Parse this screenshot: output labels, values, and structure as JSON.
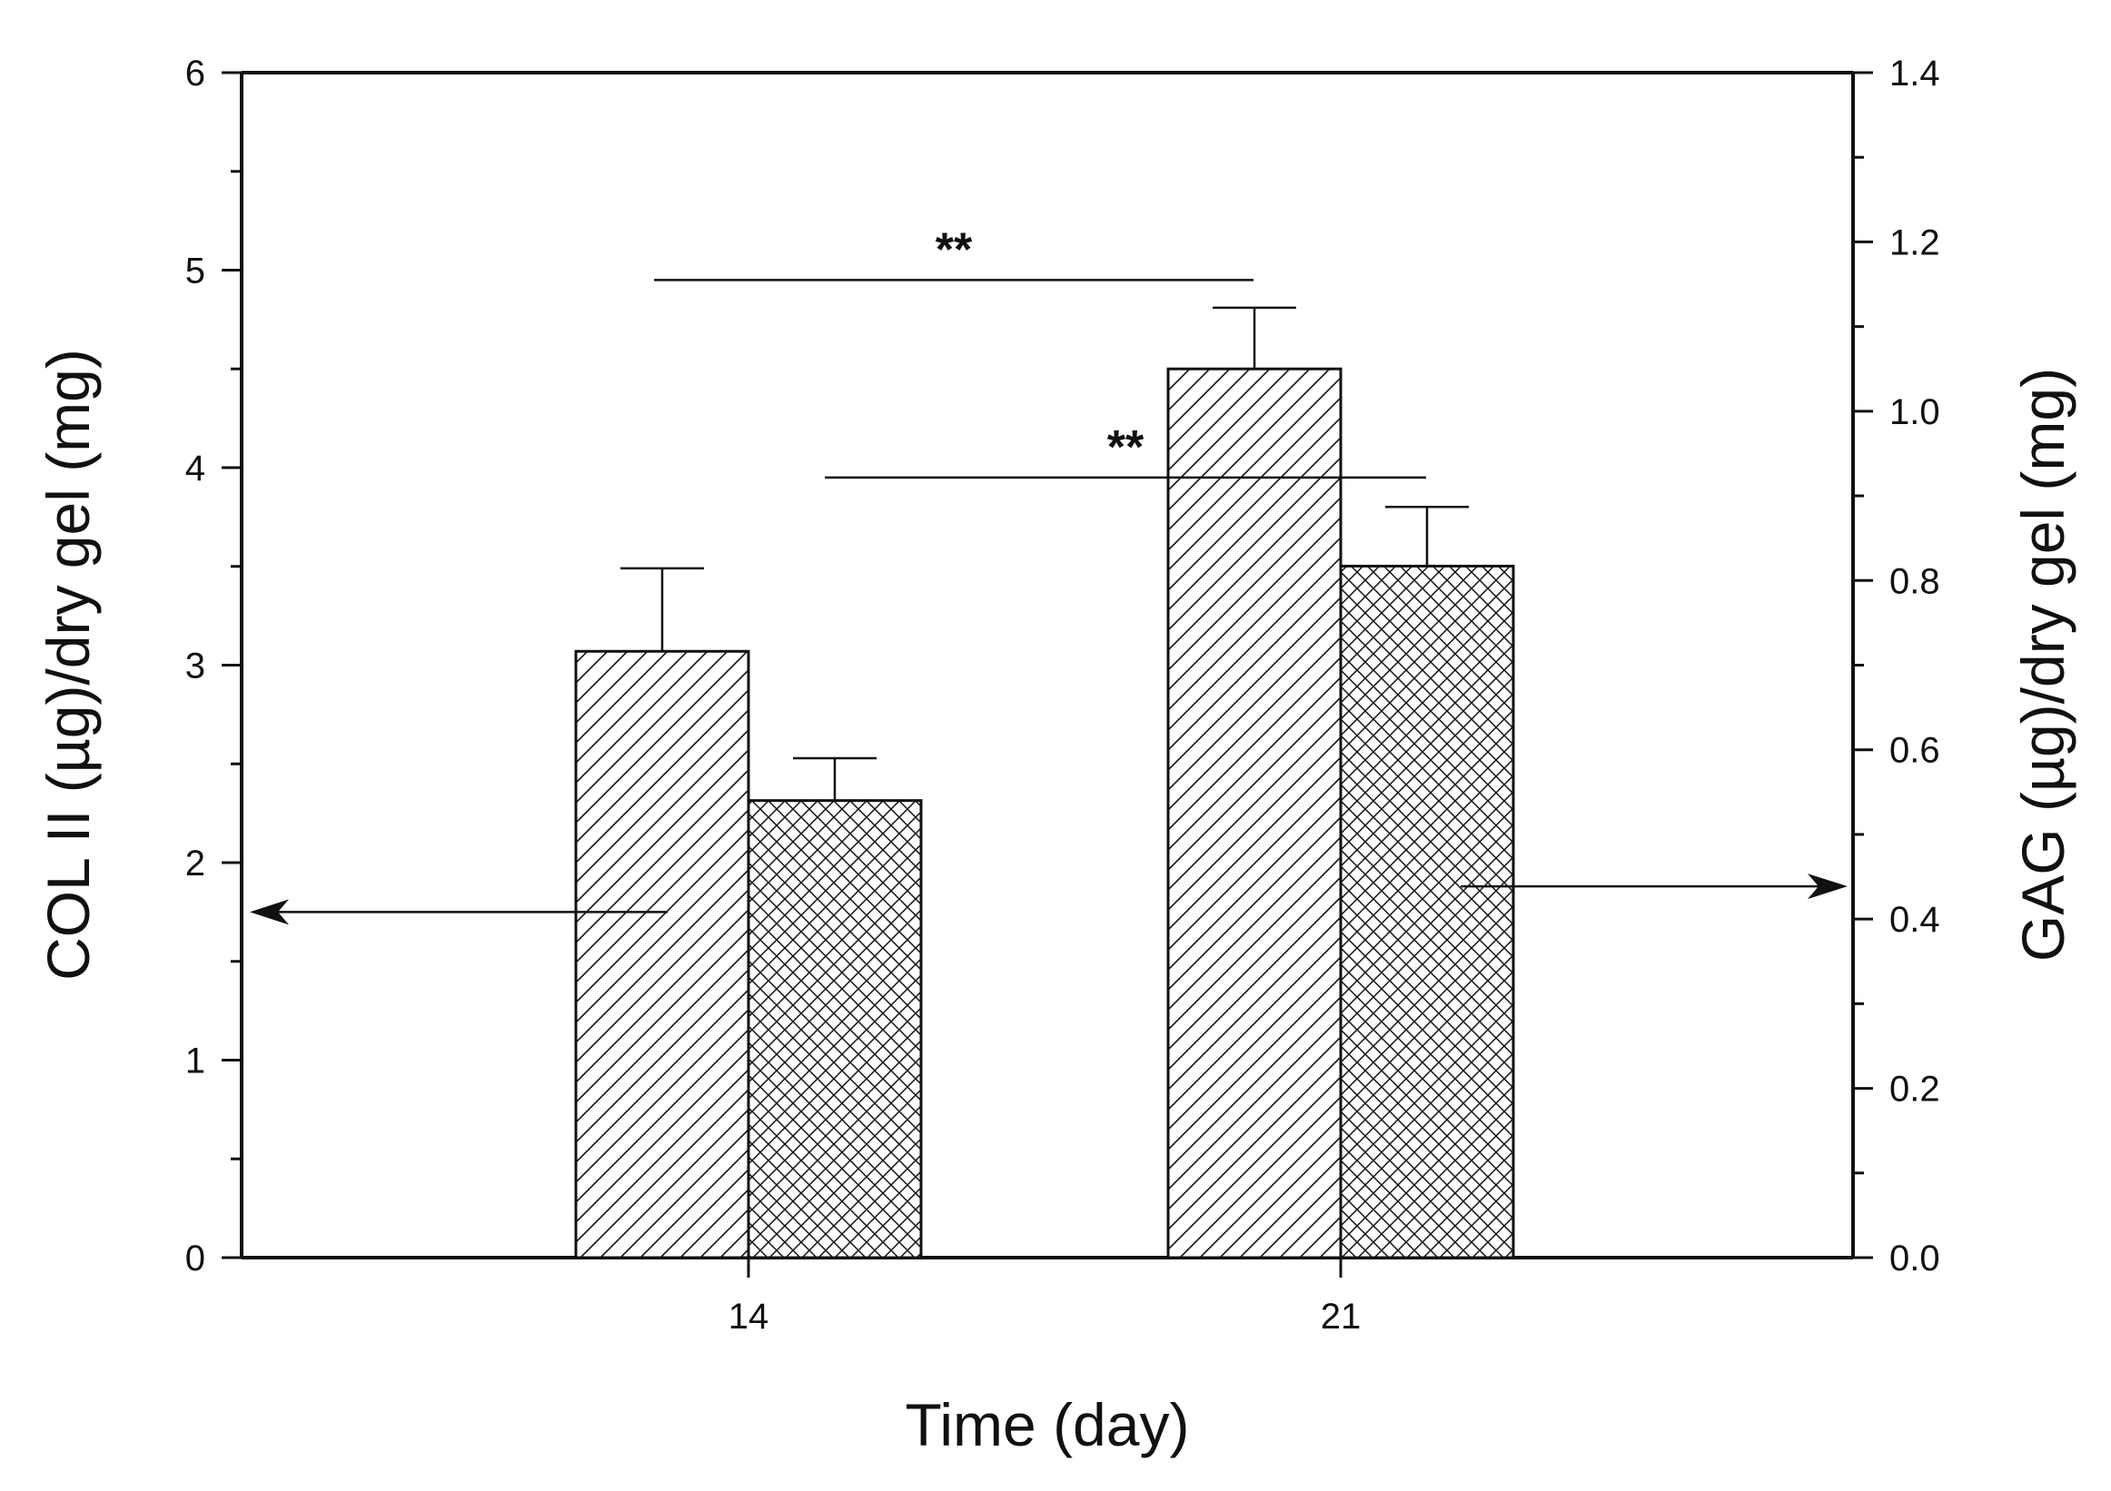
{
  "chart_data": {
    "type": "bar",
    "categories": [
      "14",
      "21"
    ],
    "xlabel": "Time (day)",
    "ylabel_left": "COL II (µg)/dry gel (mg)",
    "ylabel_right": "GAG (µg)/dry gel (mg)",
    "ylim_left": [
      0,
      6
    ],
    "ylim_right": [
      0,
      1.4
    ],
    "yticks_left": [
      "0",
      "1",
      "2",
      "3",
      "4",
      "5",
      "6"
    ],
    "yticks_right": [
      "0.0",
      "0.2",
      "0.4",
      "0.6",
      "0.8",
      "1.0",
      "1.2",
      "1.4"
    ],
    "series": [
      {
        "axis": "left",
        "pattern": "diagonal-hatch",
        "values": [
          3.07,
          4.5
        ],
        "errors": [
          0.42,
          0.31
        ]
      },
      {
        "axis": "right",
        "pattern": "cross-hatch",
        "values": [
          0.54,
          0.817
        ],
        "errors": [
          0.05,
          0.07
        ]
      }
    ],
    "annotations": [
      {
        "label": "**",
        "y_left": 4.95,
        "from": "14",
        "to": "21"
      },
      {
        "label": "**",
        "y_left": 3.95,
        "from": "14",
        "to": "21"
      }
    ],
    "axis_indicators": [
      {
        "direction": "left",
        "y_left": 1.75
      },
      {
        "direction": "right",
        "y_left": 1.88
      }
    ],
    "grid": false,
    "legend": "none"
  }
}
